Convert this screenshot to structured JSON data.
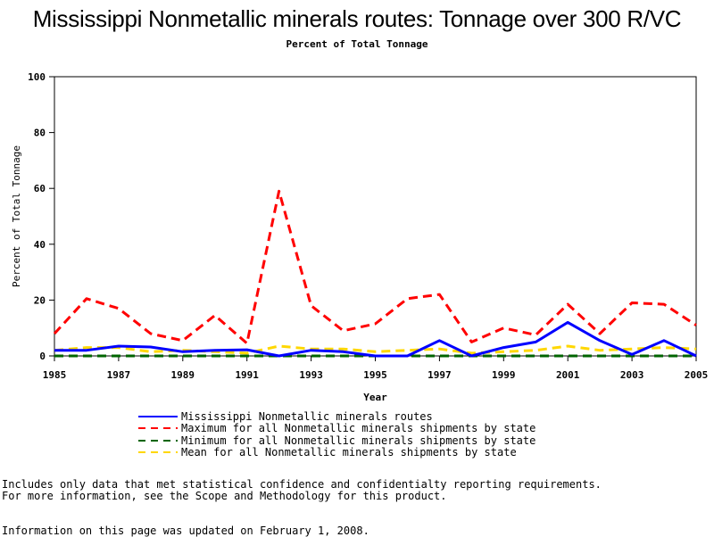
{
  "title": "Mississippi Nonmetallic minerals routes: Tonnage over 300 R/VC",
  "subtitle": "Percent of Total Tonnage",
  "colors": {
    "state": "#0000ff",
    "max": "#ff0000",
    "min": "#006400",
    "mean": "#ffd700",
    "frame": "#000000"
  },
  "chart_data": {
    "type": "line",
    "xlabel": "Year",
    "ylabel": "Percent of Total Tonnage",
    "xlim": [
      1985,
      2005
    ],
    "ylim": [
      0,
      100
    ],
    "xticks": [
      "1985",
      "1987",
      "1989",
      "1991",
      "1993",
      "1995",
      "1997",
      "1999",
      "2001",
      "2003",
      "2005"
    ],
    "yticks": [
      "0",
      "20",
      "40",
      "60",
      "80",
      "100"
    ],
    "grid": false,
    "legend_position": "bottom",
    "x": [
      1985,
      1986,
      1987,
      1988,
      1989,
      1990,
      1991,
      1992,
      1993,
      1994,
      1995,
      1996,
      1997,
      1998,
      1999,
      2000,
      2001,
      2002,
      2003,
      2004,
      2005
    ],
    "series": [
      {
        "name": "Mississippi Nonmetallic minerals routes",
        "color": "#0000ff",
        "style": "solid",
        "values": [
          2,
          2,
          3.5,
          3.2,
          1.5,
          2,
          2.2,
          0,
          2,
          1.5,
          0,
          0,
          5.5,
          0,
          3,
          5,
          12,
          5.5,
          0.5,
          5.5,
          0
        ]
      },
      {
        "name": "Maximum for all Nonmetallic minerals shipments by state",
        "color": "#ff0000",
        "style": "dashed",
        "values": [
          8,
          20.5,
          17,
          8,
          5.5,
          14.5,
          4.5,
          59,
          18,
          9,
          11.5,
          20.5,
          22,
          5,
          10,
          7.5,
          18.5,
          8,
          19,
          18.5,
          11
        ]
      },
      {
        "name": "Minimum for all Nonmetallic minerals shipments by state",
        "color": "#006400",
        "style": "dashed",
        "values": [
          0,
          0,
          0,
          0,
          0,
          0,
          0,
          0,
          0,
          0,
          0,
          0,
          0,
          0,
          0,
          0,
          0,
          0,
          0,
          0,
          0
        ]
      },
      {
        "name": "Mean for all Nonmetallic minerals shipments by state",
        "color": "#ffd700",
        "style": "dashed",
        "values": [
          2,
          3,
          3,
          1.5,
          2,
          1.5,
          1,
          3.5,
          2.5,
          2.5,
          1.5,
          2,
          2.5,
          1,
          1.5,
          2,
          3.5,
          2,
          2.5,
          3,
          2.5
        ]
      }
    ]
  },
  "notes": {
    "line1": "Includes only data that met statistical confidence and confidentialty reporting requirements.",
    "line2": "For more information, see the Scope and Methodology for this product.",
    "line3": "Information on this page was updated on February 1, 2008."
  }
}
